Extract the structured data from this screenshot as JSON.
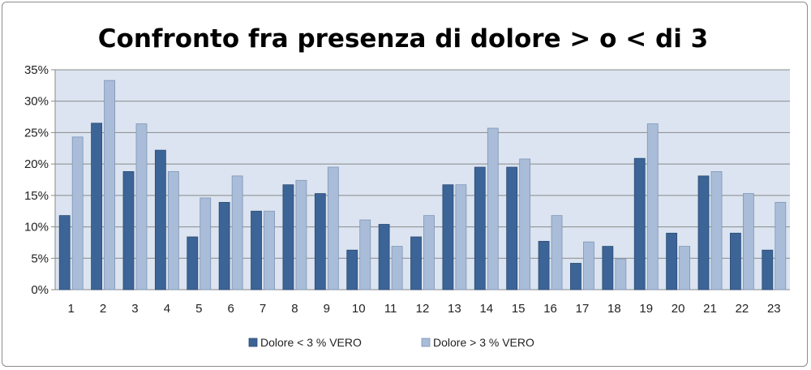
{
  "chart_data": {
    "type": "bar",
    "title": "Confronto fra presenza di dolore > o < di 3",
    "xlabel": "",
    "ylabel": "",
    "categories": [
      "1",
      "2",
      "3",
      "4",
      "5",
      "6",
      "7",
      "8",
      "9",
      "10",
      "11",
      "12",
      "13",
      "14",
      "15",
      "16",
      "17",
      "18",
      "19",
      "20",
      "21",
      "22",
      "23"
    ],
    "series": [
      {
        "name": "Dolore < 3   % VERO",
        "color": "#3c6496",
        "values": [
          11.8,
          26.5,
          18.8,
          22.2,
          8.4,
          13.9,
          12.5,
          16.7,
          15.3,
          6.3,
          10.4,
          8.4,
          16.7,
          19.5,
          19.5,
          7.7,
          4.2,
          6.9,
          20.9,
          9.0,
          18.1,
          9.0,
          6.3
        ]
      },
      {
        "name": "Dolore > 3   % VERO",
        "color": "#a9bcd8",
        "values": [
          24.3,
          33.3,
          26.4,
          18.8,
          14.6,
          18.1,
          12.5,
          17.4,
          19.5,
          11.1,
          6.9,
          11.8,
          16.7,
          25.7,
          20.8,
          11.8,
          7.6,
          4.9,
          26.4,
          6.9,
          18.8,
          15.3,
          13.9
        ]
      }
    ],
    "ylim": [
      0,
      35
    ],
    "yticks": [
      "0%",
      "5%",
      "10%",
      "15%",
      "20%",
      "25%",
      "30%",
      "35%"
    ],
    "ytick_values": [
      0,
      5,
      10,
      15,
      20,
      25,
      30,
      35
    ],
    "grid": true,
    "legend_position": "bottom",
    "plot_background": "#dbe4f0"
  }
}
